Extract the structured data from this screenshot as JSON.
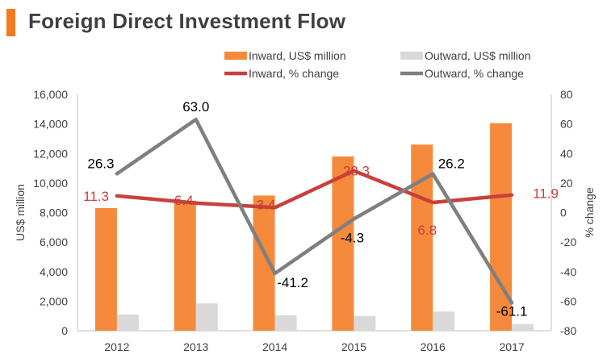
{
  "title": "Foreign Direct Investment Flow",
  "colors": {
    "accent": "#f47920",
    "inward_bar": "#f58a3c",
    "outward_bar": "#d9d9d9",
    "inward_line": "#c9403a",
    "outward_line": "#7f7f7f",
    "axis_text": "#404040"
  },
  "chart_data": {
    "type": "bar",
    "categories": [
      "2012",
      "2013",
      "2014",
      "2015",
      "2016",
      "2017"
    ],
    "series": [
      {
        "name": "Inward, US$ million",
        "kind": "bar",
        "axis": "left",
        "values": [
          8300,
          8800,
          9150,
          11800,
          12600,
          14050
        ]
      },
      {
        "name": "Outward, US$ million",
        "kind": "bar",
        "axis": "left",
        "values": [
          1100,
          1850,
          1050,
          1000,
          1300,
          450
        ]
      },
      {
        "name": "Inward, % change",
        "kind": "line",
        "axis": "right",
        "values": [
          11.3,
          6.4,
          3.4,
          28.3,
          6.8,
          11.9
        ],
        "labels": [
          "11.3",
          "6.4",
          "3.4",
          "28.3",
          "6.8",
          "11.9"
        ]
      },
      {
        "name": "Outward, % change",
        "kind": "line",
        "axis": "right",
        "values": [
          26.3,
          63.0,
          -41.2,
          -4.3,
          26.2,
          -61.1
        ],
        "labels": [
          "26.3",
          "63.0",
          "-41.2",
          "-4.3",
          "26.2",
          "-61.1"
        ]
      }
    ],
    "ylabel": "US$ million",
    "y2label": "% change",
    "ylim": [
      0,
      16000
    ],
    "y2lim": [
      -80,
      80
    ],
    "yticks": [
      "0",
      "2,000",
      "4,000",
      "6,000",
      "8,000",
      "10,000",
      "12,000",
      "14,000",
      "16,000"
    ],
    "y2ticks": [
      "-80",
      "-60",
      "-40",
      "-20",
      "0",
      "20",
      "40",
      "60",
      "80"
    ],
    "legend": "top",
    "grid": false
  }
}
